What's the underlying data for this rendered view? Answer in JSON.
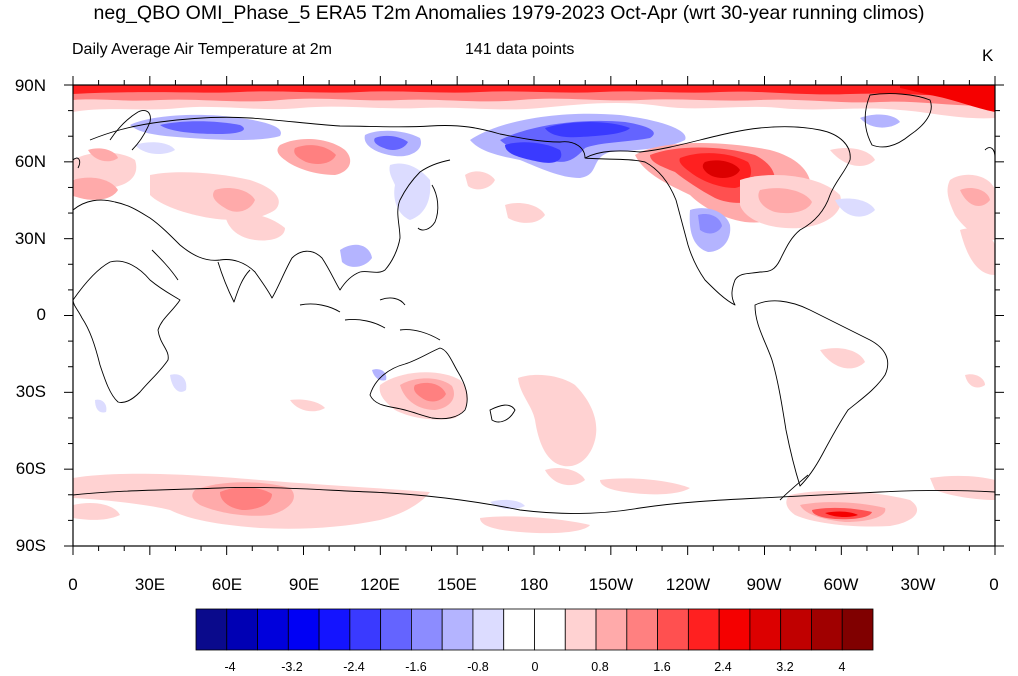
{
  "header": {
    "title": "neg_QBO OMI_Phase_5 ERA5 T2m Anomalies 1979-2023 Oct-Apr (wrt 30-year running climos)",
    "left_subtitle": "Daily Average Air Temperature at 2m",
    "center_subtitle": "141 data points",
    "units": "K"
  },
  "map": {
    "projection": "cylindrical-equidistant",
    "center_longitude": 180,
    "lat_labels": [
      "90N",
      "60N",
      "30N",
      "0",
      "30S",
      "60S",
      "90S"
    ],
    "lon_labels": [
      "0",
      "30E",
      "60E",
      "90E",
      "120E",
      "150E",
      "180",
      "150W",
      "120W",
      "90W",
      "60W",
      "30W",
      "0"
    ],
    "anomaly_regions": [
      {
        "name": "arctic-warm-band",
        "value": 2.6
      },
      {
        "name": "central-arctic-warm",
        "value": 3.0
      },
      {
        "name": "siberia-cold",
        "value": -1.2
      },
      {
        "name": "east-siberia-cold",
        "value": -2.2
      },
      {
        "name": "bering-cold",
        "value": -1.8
      },
      {
        "name": "western-canada-warm",
        "value": 3.2
      },
      {
        "name": "eastern-canada-warm",
        "value": 1.0
      },
      {
        "name": "southwest-us-cold",
        "value": -1.0
      },
      {
        "name": "central-asia-warm",
        "value": 1.2
      },
      {
        "name": "europe-warm",
        "value": 0.8
      },
      {
        "name": "australia-warm",
        "value": 1.6
      },
      {
        "name": "south-pacific-warm",
        "value": 0.6
      },
      {
        "name": "antarctica-east-warm",
        "value": 1.4
      },
      {
        "name": "antarctic-peninsula-warm",
        "value": 2.2
      },
      {
        "name": "east-asia-cold",
        "value": -0.8
      }
    ]
  },
  "colorbar": {
    "labels": [
      "-4",
      "-3.2",
      "-2.4",
      "-1.6",
      "-0.8",
      "0",
      "0.8",
      "1.6",
      "2.4",
      "3.2",
      "4"
    ],
    "colors": [
      "#0a0a8c",
      "#0000b4",
      "#0000dc",
      "#0000f5",
      "#1414ff",
      "#3a3aff",
      "#6464ff",
      "#8c8cff",
      "#b4b4ff",
      "#dcdcff",
      "#ffffff",
      "#ffffff",
      "#ffd2d2",
      "#ffaaaa",
      "#ff8080",
      "#ff5050",
      "#ff2020",
      "#f50000",
      "#dc0000",
      "#c00000",
      "#a00000",
      "#800000"
    ]
  }
}
